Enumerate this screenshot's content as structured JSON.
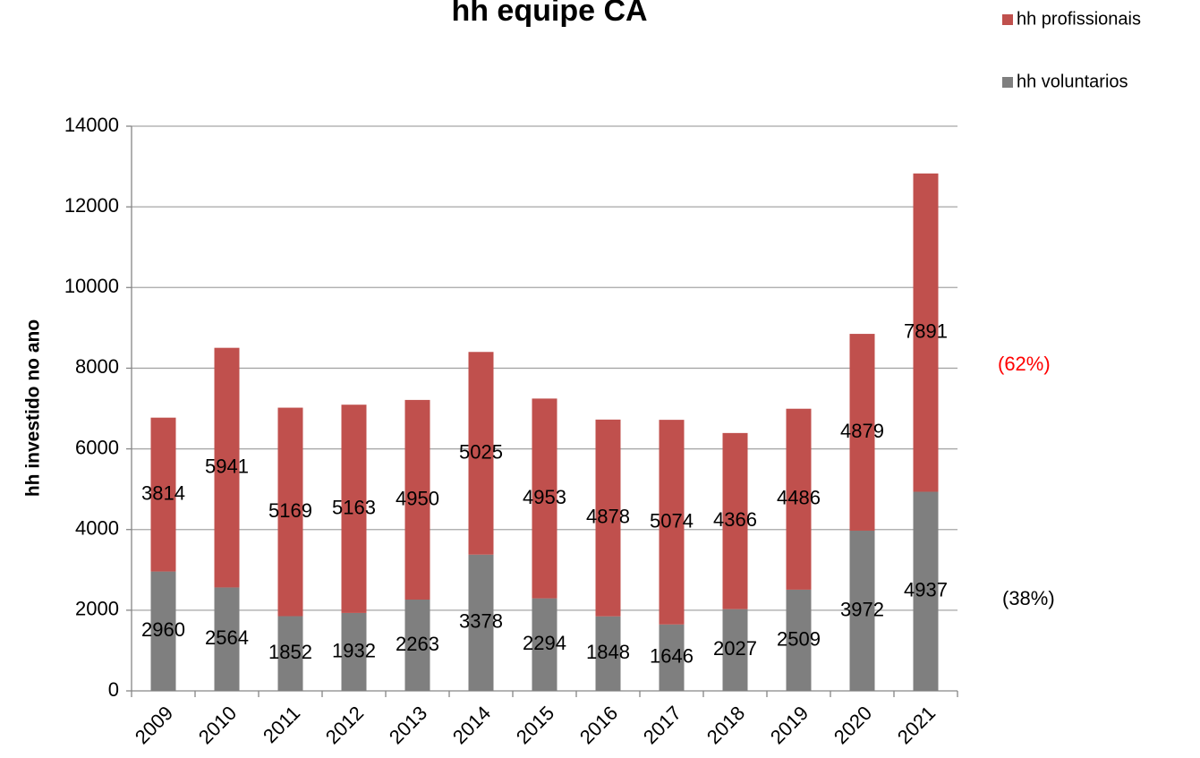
{
  "chart_data": {
    "type": "stacked_bar",
    "title": "hh equipe CA",
    "ylabel": "hh investido no ano",
    "categories": [
      "2009",
      "2010",
      "2011",
      "2012",
      "2013",
      "2014",
      "2015",
      "2016",
      "2017",
      "2018",
      "2019",
      "2020",
      "2021"
    ],
    "series": [
      {
        "name": "hh voluntarios",
        "color": "#7f7f7f",
        "values": [
          2960,
          2564,
          1852,
          1932,
          2263,
          3378,
          2294,
          1848,
          1646,
          2027,
          2509,
          3972,
          4937
        ]
      },
      {
        "name": "hh profissionais",
        "color": "#c0504d",
        "values": [
          3814,
          5941,
          5169,
          5163,
          4950,
          5025,
          4953,
          4878,
          5074,
          4366,
          4486,
          4879,
          7891
        ]
      }
    ],
    "ylim": [
      0,
      14000
    ],
    "yticks": [
      0,
      2000,
      4000,
      6000,
      8000,
      10000,
      12000,
      14000
    ],
    "grid": true,
    "legend": "top-right",
    "annotations": [
      {
        "text": "(62%)",
        "color": "#ff0000"
      },
      {
        "text": "(38%)",
        "color": "#000000"
      }
    ]
  }
}
